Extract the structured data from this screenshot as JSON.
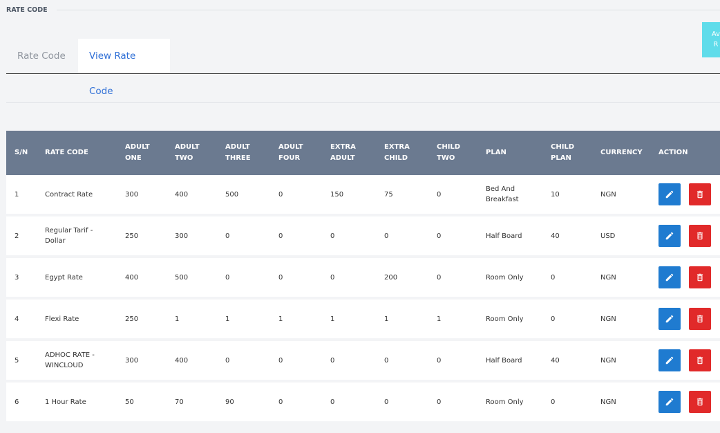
{
  "header": {
    "title": "RATE CODE"
  },
  "tabs": [
    "Rate Code",
    "View Rate Code"
  ],
  "side_button": [
    "Av",
    "R"
  ],
  "table": {
    "columns": [
      "S/N",
      "RATE CODE",
      "ADULT ONE",
      "ADULT TWO",
      "ADULT THREE",
      "ADULT FOUR",
      "EXTRA ADULT",
      "EXTRA CHILD",
      "CHILD TWO",
      "PLAN",
      "CHILD PLAN",
      "CURRENCY",
      "ACTION"
    ],
    "rows": [
      [
        1,
        "Contract Rate",
        300,
        400,
        500,
        0,
        150,
        75,
        0,
        "Bed And Breakfast",
        10,
        "NGN"
      ],
      [
        2,
        "Regular Tarif - Dollar",
        250,
        300,
        0,
        0,
        0,
        0,
        0,
        "Half Board",
        40,
        "USD"
      ],
      [
        3,
        "Egypt Rate",
        400,
        500,
        0,
        0,
        0,
        200,
        0,
        "Room Only",
        0,
        "NGN"
      ],
      [
        4,
        "Flexi Rate",
        250,
        1,
        1,
        1,
        1,
        1,
        1,
        "Room Only",
        0,
        "NGN"
      ],
      [
        5,
        "ADHOC RATE - WINCLOUD",
        300,
        400,
        0,
        0,
        0,
        0,
        0,
        "Half Board",
        40,
        "NGN"
      ],
      [
        6,
        "1 Hour Rate",
        50,
        70,
        90,
        0,
        0,
        0,
        0,
        "Room Only",
        0,
        "NGN"
      ]
    ]
  }
}
